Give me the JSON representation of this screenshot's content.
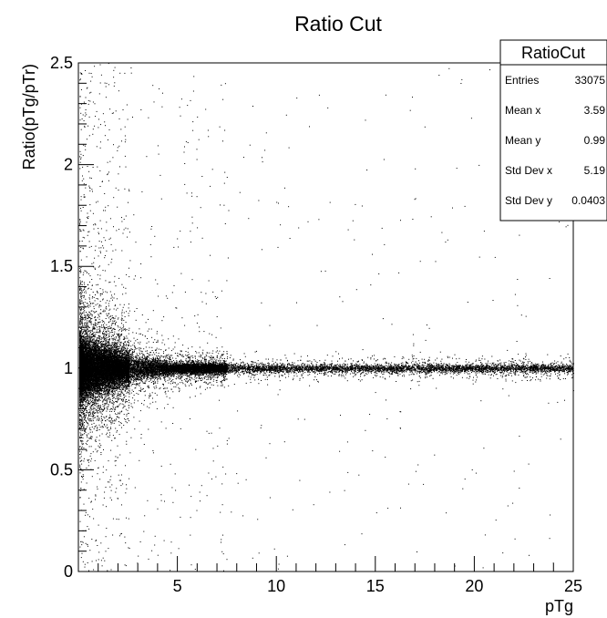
{
  "chart_data": {
    "type": "scatter",
    "title": "Ratio Cut",
    "xlabel": "pTg",
    "ylabel": "Ratio(pTg/pTr)",
    "xlim": [
      0,
      25
    ],
    "ylim": [
      0,
      2.5
    ],
    "x_ticks": [
      {
        "value": 5,
        "label": "5"
      },
      {
        "value": 10,
        "label": "10"
      },
      {
        "value": 15,
        "label": "15"
      },
      {
        "value": 20,
        "label": "20"
      },
      {
        "value": 25,
        "label": "25"
      }
    ],
    "y_ticks": [
      {
        "value": 0,
        "label": "0"
      },
      {
        "value": 0.5,
        "label": "0.5"
      },
      {
        "value": 1,
        "label": "1"
      },
      {
        "value": 1.5,
        "label": "1.5"
      },
      {
        "value": 2,
        "label": "2"
      },
      {
        "value": 2.5,
        "label": "2.5"
      }
    ],
    "grid": false,
    "marker_color": "#000000",
    "stats_box": {
      "title": "RatioCut",
      "placement": "top-right",
      "rows": [
        {
          "label": "Entries",
          "value": "33075"
        },
        {
          "label": "Mean x",
          "value": "3.59"
        },
        {
          "label": "Mean y",
          "value": "0.99"
        },
        {
          "label": "Std Dev x",
          "value": "5.19"
        },
        {
          "label": "Std Dev y",
          "value": "0.0403"
        }
      ]
    },
    "density_profile": {
      "center_y": 1.0,
      "std_y_at_x": [
        {
          "x": 0.2,
          "std": 0.07
        },
        {
          "x": 1,
          "std": 0.06
        },
        {
          "x": 2.5,
          "std": 0.035
        },
        {
          "x": 5,
          "std": 0.013
        },
        {
          "x": 10,
          "std": 0.01
        },
        {
          "x": 15,
          "std": 0.01
        },
        {
          "x": 20,
          "std": 0.01
        },
        {
          "x": 25,
          "std": 0.01
        }
      ]
    }
  }
}
